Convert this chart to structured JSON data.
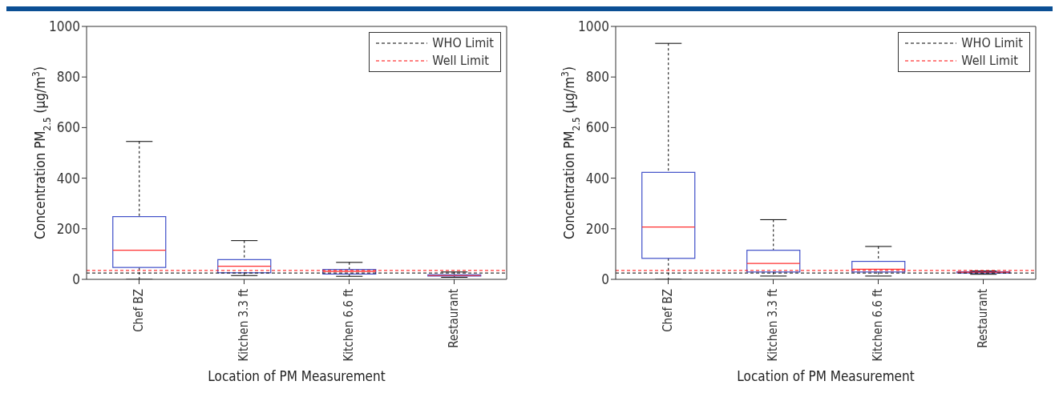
{
  "chart_data": [
    {
      "type": "box",
      "xlabel": "Location of PM Measurement",
      "ylabel": "Concentration PM$_{2.5}$ (μg/m$^{3}$)",
      "categories": [
        "Chef BZ",
        "Kitchen 3.3 ft",
        "Kitchen 6.6 ft",
        "Restaurant"
      ],
      "series": [
        {
          "color": "#3f4fc8",
          "boxes": [
            {
              "low": 0,
              "q1": 47,
              "median": 115,
              "q3": 248,
              "high": 545
            },
            {
              "low": 15,
              "q1": 26,
              "median": 52,
              "q3": 78,
              "high": 153
            },
            {
              "low": 12,
              "q1": 21,
              "median": 31,
              "q3": 39,
              "high": 67
            },
            {
              "low": 8,
              "q1": 13,
              "median": 15,
              "q3": 18,
              "high": 29
            }
          ]
        }
      ],
      "ylim": [
        0,
        1000
      ],
      "yticks": [
        0,
        200,
        400,
        600,
        800,
        1000
      ],
      "grid": false,
      "legend": "top right",
      "ref_lines": [
        {
          "axis": "y",
          "value": 25,
          "label": "WHO Limit",
          "color": "#000000",
          "line_style": "dashed"
        },
        {
          "axis": "y",
          "value": 35,
          "label": "Well Limit",
          "color": "#ff0000",
          "line_style": "dashed"
        }
      ]
    },
    {
      "type": "box",
      "xlabel": "Location of PM Measurement",
      "ylabel": "Concentration PM$_{2.5}$ (μg/m$^{3}$)",
      "categories": [
        "Chef BZ",
        "Kitchen 3.3 ft",
        "Kitchen 6.6 ft",
        "Restaurant"
      ],
      "series": [
        {
          "color": "#3f4fc8",
          "boxes": [
            {
              "low": 0,
              "q1": 83,
              "median": 207,
              "q3": 423,
              "high": 933
            },
            {
              "low": 13,
              "q1": 29,
              "median": 63,
              "q3": 115,
              "high": 236
            },
            {
              "low": 13,
              "q1": 29,
              "median": 40,
              "q3": 71,
              "high": 130
            },
            {
              "low": 20,
              "q1": 25,
              "median": 28,
              "q3": 30,
              "high": 33
            }
          ]
        }
      ],
      "ylim": [
        0,
        1000
      ],
      "yticks": [
        0,
        200,
        400,
        600,
        800,
        1000
      ],
      "grid": false,
      "legend": "top right",
      "ref_lines": [
        {
          "axis": "y",
          "value": 25,
          "label": "WHO Limit",
          "color": "#000000",
          "line_style": "dashed"
        },
        {
          "axis": "y",
          "value": 35,
          "label": "Well Limit",
          "color": "#ff0000",
          "line_style": "dashed"
        }
      ]
    }
  ]
}
